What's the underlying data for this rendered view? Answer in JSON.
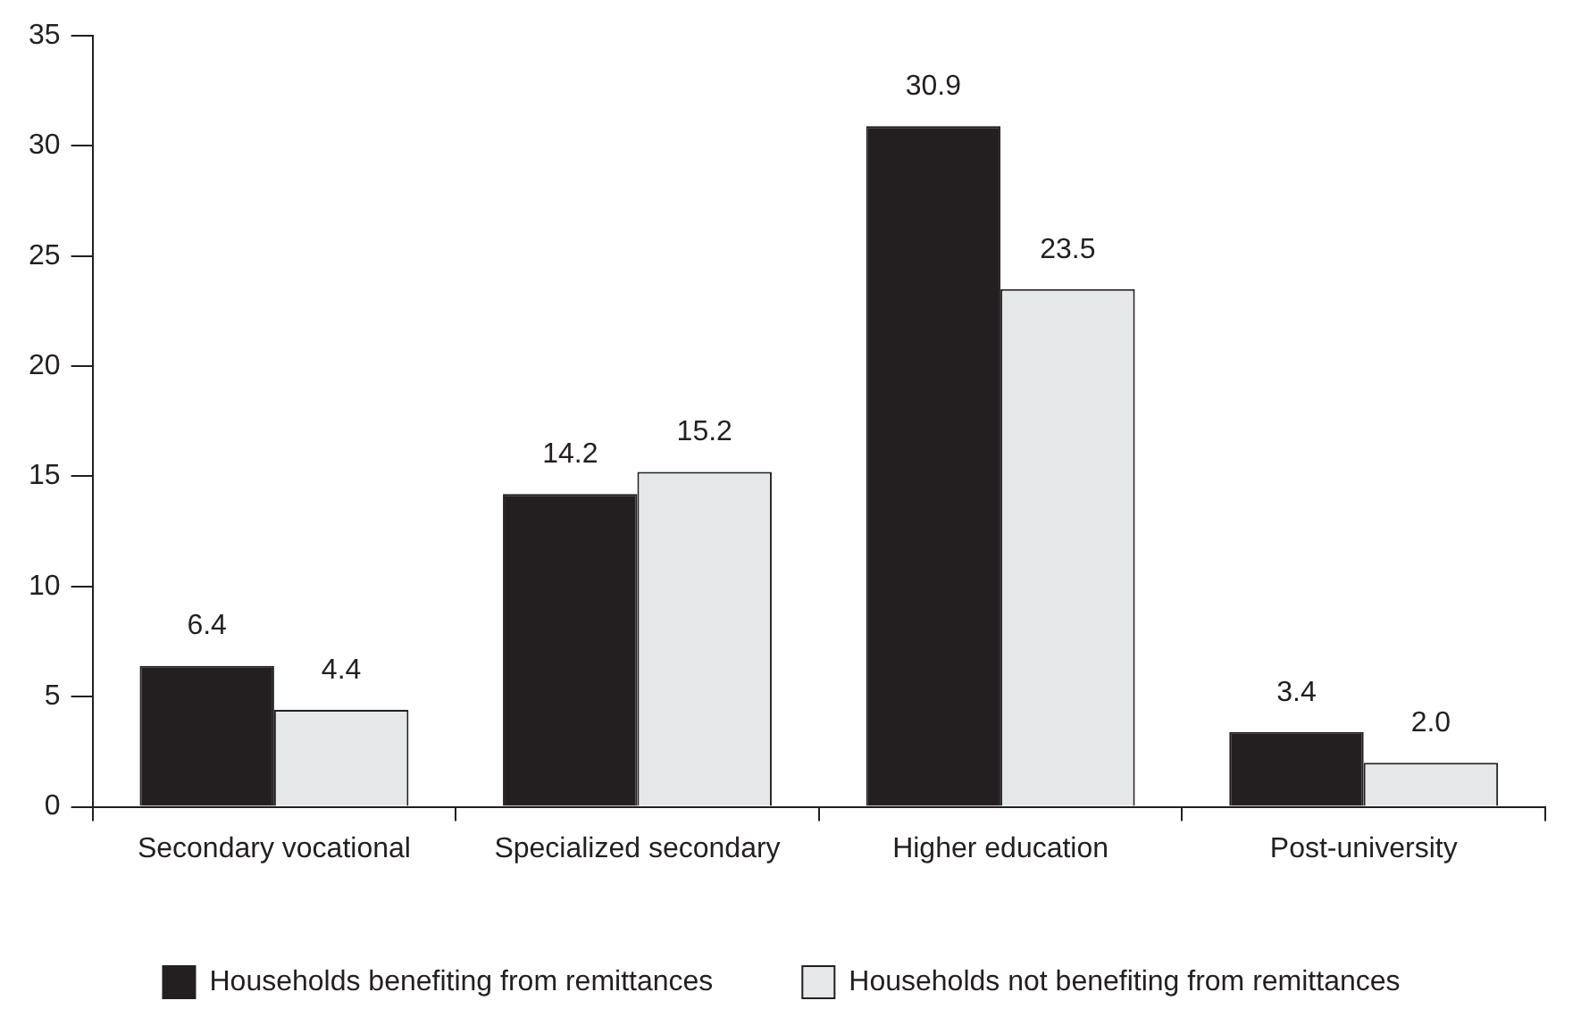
{
  "chart_data": {
    "type": "bar",
    "categories": [
      "Secondary vocational",
      "Specialized secondary",
      "Higher education",
      "Post-university"
    ],
    "series": [
      {
        "name": "Households benefiting from remittances",
        "color": "#231f20",
        "values": [
          6.4,
          14.2,
          30.9,
          3.4
        ],
        "value_labels": [
          "6.4",
          "14.2",
          "30.9",
          "3.4"
        ]
      },
      {
        "name": "Households not benefiting from remittances",
        "color": "#e6e7e8",
        "values": [
          4.4,
          15.2,
          23.5,
          2.0
        ],
        "value_labels": [
          "4.4",
          "15.2",
          "23.5",
          "2.0"
        ]
      }
    ],
    "ylim": [
      0,
      35
    ],
    "yticks": [
      0,
      5,
      10,
      15,
      20,
      25,
      30,
      35
    ],
    "grid": false,
    "legend": "bottom"
  }
}
